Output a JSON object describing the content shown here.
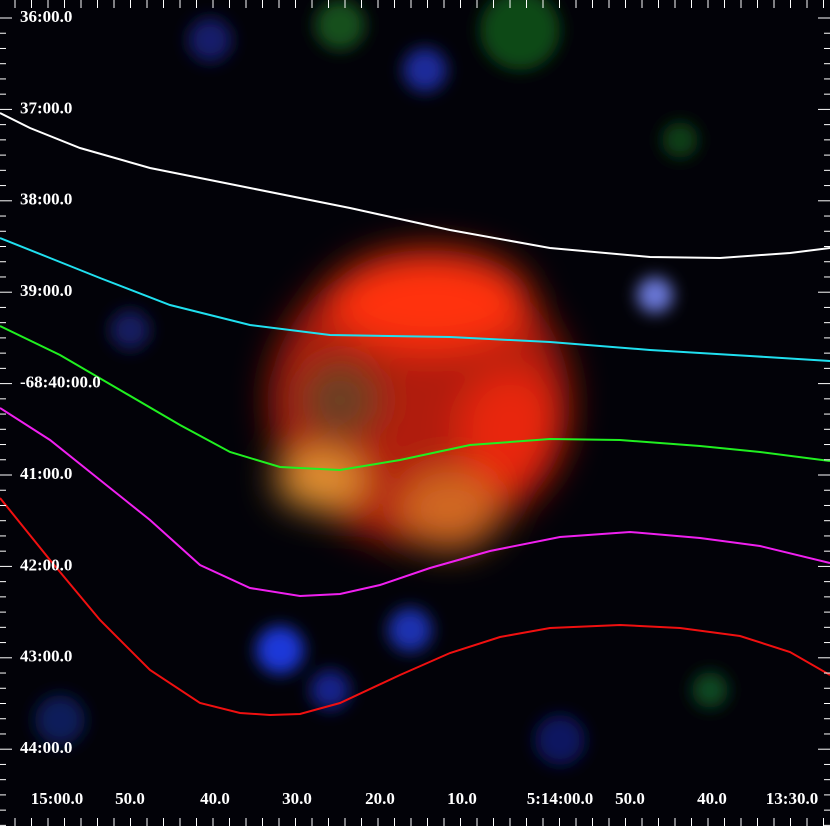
{
  "y_axis_labels": [
    "36:00.0",
    "37:00.0",
    "38:00.0",
    "39:00.0",
    "-68:40:00.0",
    "41:00.0",
    "42:00.0",
    "43:00.0",
    "44:00.0"
  ],
  "x_axis_labels": [
    "15:00.0",
    "50.0",
    "40.0",
    "30.0",
    "20.0",
    "10.0",
    "5:14:00.0",
    "50.0",
    "40.0",
    "13:30.0"
  ]
}
